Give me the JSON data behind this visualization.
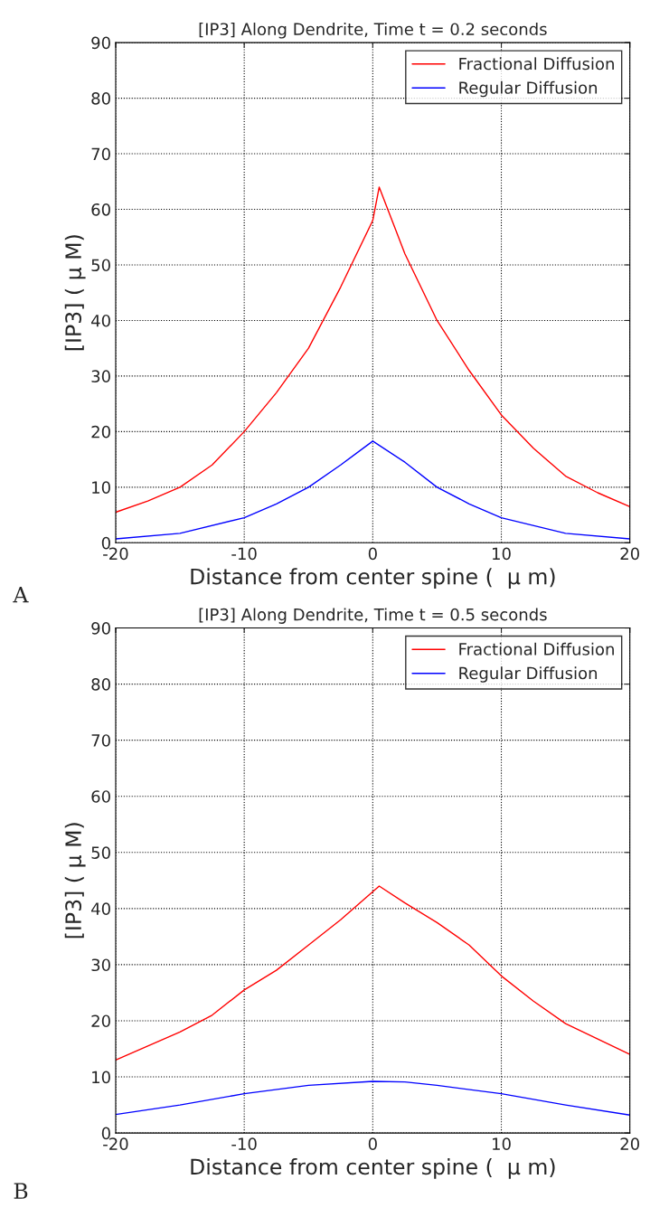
{
  "chart_data": [
    {
      "type": "line",
      "title": "[IP3] Along Dendrite, Time t = 0.2 seconds",
      "xlabel": "Distance from center spine (  μ m)",
      "ylabel": "[IP3] ( μ M)",
      "annotations": [
        "A"
      ],
      "xlim": [
        -20,
        20
      ],
      "xticks": [
        -20,
        -10,
        0,
        10,
        20
      ],
      "ylim": [
        0,
        90
      ],
      "yticks": [
        0,
        10,
        20,
        30,
        40,
        50,
        60,
        70,
        80,
        90
      ],
      "grid": true,
      "legend": "top right",
      "series": [
        {
          "name": "Fractional Diffusion",
          "color": "#ff0000",
          "x": [
            -20,
            -17.5,
            -15,
            -12.5,
            -10,
            -7.5,
            -5,
            -2.5,
            0,
            0.5,
            2.5,
            5,
            7.5,
            10,
            12.5,
            15,
            17.5,
            20
          ],
          "values": [
            5.5,
            7.5,
            10,
            14,
            20,
            27,
            35,
            46,
            58,
            64,
            52,
            40,
            31,
            23,
            17,
            12,
            9,
            6.5
          ]
        },
        {
          "name": "Regular Diffusion",
          "color": "#0000ff",
          "x": [
            -20,
            -15,
            -10,
            -7.5,
            -5,
            -2.5,
            0,
            2.5,
            5,
            7.5,
            10,
            15,
            20
          ],
          "values": [
            0.7,
            1.7,
            4.5,
            7,
            10,
            14,
            18.3,
            14.5,
            10,
            7,
            4.5,
            1.7,
            0.7
          ]
        }
      ]
    },
    {
      "type": "line",
      "title": "[IP3] Along Dendrite, Time t = 0.5 seconds",
      "xlabel": "Distance from center spine (  μ m)",
      "ylabel": "[IP3] ( μ M)",
      "annotations": [
        "B"
      ],
      "xlim": [
        -20,
        20
      ],
      "xticks": [
        -20,
        -10,
        0,
        10,
        20
      ],
      "ylim": [
        0,
        90
      ],
      "yticks": [
        0,
        10,
        20,
        30,
        40,
        50,
        60,
        70,
        80,
        90
      ],
      "grid": true,
      "legend": "top right",
      "series": [
        {
          "name": "Fractional Diffusion",
          "color": "#ff0000",
          "x": [
            -20,
            -15,
            -12.5,
            -10,
            -7.5,
            -5,
            -2.5,
            0.5,
            2.5,
            5,
            7.5,
            10,
            12.5,
            15,
            20
          ],
          "values": [
            13,
            18,
            21,
            25.5,
            29,
            33.5,
            38,
            44,
            41,
            37.5,
            33.5,
            28,
            23.5,
            19.5,
            14
          ]
        },
        {
          "name": "Regular Diffusion",
          "color": "#0000ff",
          "x": [
            -20,
            -15,
            -10,
            -5,
            0,
            2.5,
            5,
            10,
            15,
            20
          ],
          "values": [
            3.3,
            5,
            7,
            8.5,
            9.2,
            9.1,
            8.5,
            7,
            5,
            3.2
          ]
        }
      ]
    }
  ]
}
